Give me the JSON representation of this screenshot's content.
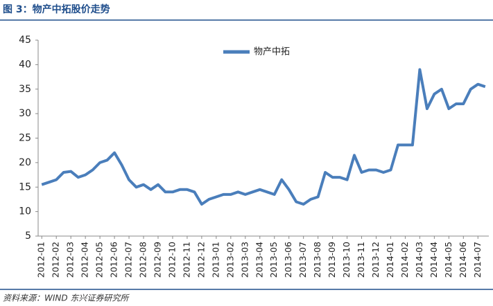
{
  "chart_data": {
    "type": "line",
    "title": "图 3：物产中拓股价走势",
    "source": "资料来源：WIND 东兴证券研究所",
    "categories": [
      "2012-01",
      null,
      "2012-02",
      null,
      "2012-03",
      null,
      "2012-04",
      null,
      "2012-05",
      null,
      "2012-06",
      null,
      "2012-07",
      null,
      "2012-08",
      null,
      "2012-09",
      null,
      "2012-10",
      null,
      "2012-11",
      null,
      "2012-12",
      null,
      "2013-01",
      null,
      "2013-02",
      null,
      "2013-03",
      null,
      "2013-04",
      null,
      "2013-05",
      null,
      "2013-06",
      null,
      "2013-07",
      null,
      "2013-08",
      null,
      "2013-09",
      null,
      "2013-10",
      null,
      "2013-11",
      null,
      "2013-12",
      null,
      "2014-01",
      null,
      "2014-02",
      null,
      "2014-03",
      null,
      "2014-04",
      null,
      "2014-05",
      null,
      "2014-06",
      null,
      "2014-07",
      null
    ],
    "series": [
      {
        "name": "物产中拓",
        "color": "#4a7ebb",
        "values": [
          15.5,
          16,
          16.5,
          18,
          18.2,
          17,
          17.5,
          18.5,
          20,
          20.5,
          22,
          19.5,
          16.5,
          15,
          15.5,
          14.5,
          15.5,
          14,
          14,
          14.5,
          14.5,
          14,
          11.5,
          12.5,
          13,
          13.5,
          13.5,
          14,
          13.5,
          14,
          14.5,
          14,
          13.5,
          16.5,
          14.5,
          12,
          11.5,
          12.5,
          13,
          18,
          17,
          17,
          16.5,
          21.5,
          18,
          18.5,
          18.5,
          18,
          18.5,
          23.6,
          23.6,
          23.6,
          39,
          31,
          34,
          35,
          31,
          32,
          32,
          35,
          36,
          35.5
        ]
      }
    ],
    "ylim": [
      5,
      45
    ],
    "yticks": [
      5,
      10,
      15,
      20,
      25,
      30,
      35,
      40,
      45
    ],
    "legend": "top"
  }
}
